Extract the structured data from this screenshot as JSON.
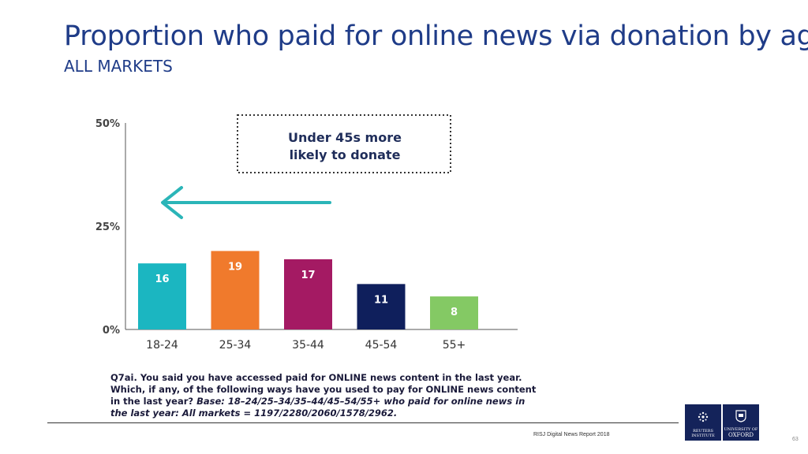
{
  "title": "Proportion who paid  for online news via donation by age",
  "subtitle": "ALL MARKETS",
  "chart_data": {
    "type": "bar",
    "categories": [
      "18-24",
      "25-34",
      "35-44",
      "45-54",
      "55+"
    ],
    "values": [
      16,
      19,
      17,
      11,
      8
    ],
    "colors": [
      "#1bb6c1",
      "#f07a2c",
      "#a41a63",
      "#0f1f5c",
      "#84c964"
    ],
    "ylim": [
      0,
      50
    ],
    "yticks": [
      0,
      25,
      50
    ],
    "ytick_labels": [
      "0%",
      "25%",
      "50%"
    ],
    "annotation": {
      "line1": "Under 45s more",
      "line2": "likely to donate",
      "arrow_direction": "left",
      "arrow_color": "#2bb5b8"
    },
    "grid": false
  },
  "question": {
    "id": "Q7ai.",
    "text": " You said you have accessed paid for ONLINE news content in the last year. Which, if any, of the following ways have you used to pay for ONLINE news content in the last year? ",
    "base": "Base: 18–24/25–34/35–44/45–54/55+ who paid for online news in the last year: All markets = 1197/2280/2060/1578/2962."
  },
  "footer": {
    "source": "RISJ Digital News Report 2018",
    "page_number": "63"
  },
  "logos": {
    "reuters_line1": "REUTERS",
    "reuters_line2": "INSTITUTE",
    "oxford_line1": "UNIVERSITY OF",
    "oxford_line2": "OXFORD"
  }
}
